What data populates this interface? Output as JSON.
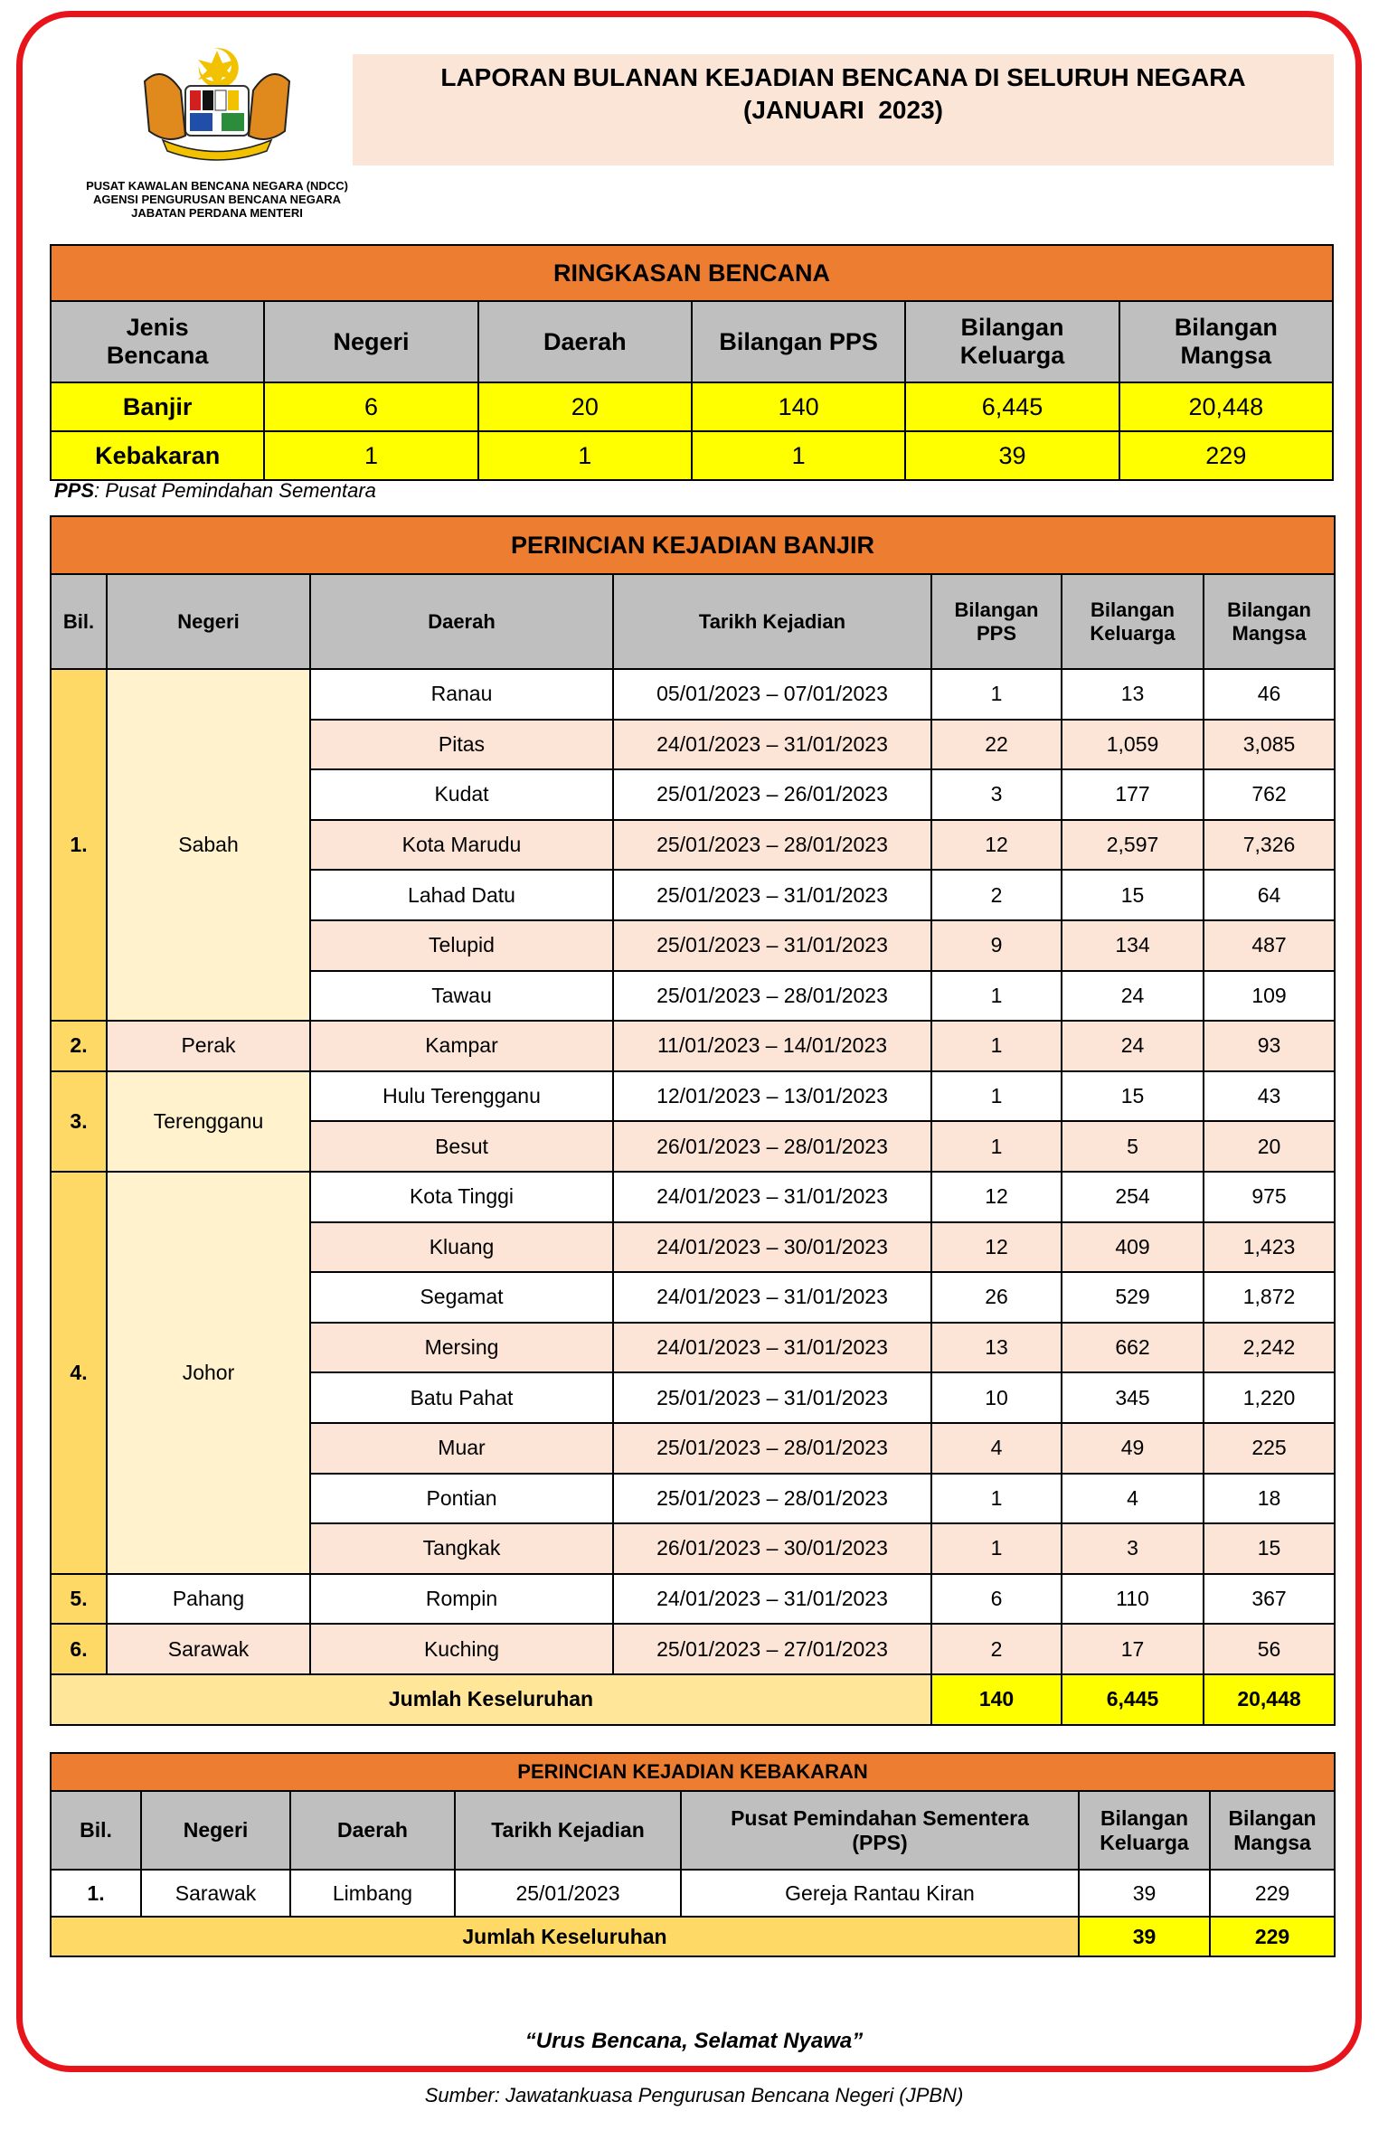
{
  "header": {
    "title": "LAPORAN BULANAN KEJADIAN BENCANA DI SELURUH NEGARA",
    "subtitle": "(JANUARI  2023)",
    "org": [
      "PUSAT KAWALAN BENCANA NEGARA (NDCC)",
      "AGENSI PENGURUSAN BENCANA NEGARA",
      "JABATAN PERDANA MENTERI"
    ]
  },
  "summary": {
    "title": "RINGKASAN BENCANA",
    "headers": [
      "Jenis\nBencana",
      "Negeri",
      "Daerah",
      "Bilangan PPS",
      "Bilangan\nKeluarga",
      "Bilangan\nMangsa"
    ],
    "rows": [
      [
        "Banjir",
        "6",
        "20",
        "140",
        "6,445",
        "20,448"
      ],
      [
        "Kebakaran",
        "1",
        "1",
        "1",
        "39",
        "229"
      ]
    ],
    "note_abbr": "PPS",
    "note_text": ": Pusat Pemindahan Sementara"
  },
  "floods": {
    "title": "PERINCIAN KEJADIAN BANJIR",
    "headers": [
      "Bil.",
      "Negeri",
      "Daerah",
      "Tarikh Kejadian",
      "Bilangan\nPPS",
      "Bilangan\nKeluarga",
      "Bilangan\nMangsa"
    ],
    "groups": [
      {
        "bil": "1.",
        "state": "Sabah",
        "rows": [
          {
            "district": "Ranau",
            "date": "05/01/2023 – 07/01/2023",
            "pps": "1",
            "families": "13",
            "victims": "46"
          },
          {
            "district": "Pitas",
            "date": "24/01/2023 – 31/01/2023",
            "pps": "22",
            "families": "1,059",
            "victims": "3,085"
          },
          {
            "district": "Kudat",
            "date": "25/01/2023 – 26/01/2023",
            "pps": "3",
            "families": "177",
            "victims": "762"
          },
          {
            "district": "Kota Marudu",
            "date": "25/01/2023 – 28/01/2023",
            "pps": "12",
            "families": "2,597",
            "victims": "7,326"
          },
          {
            "district": "Lahad Datu",
            "date": "25/01/2023 – 31/01/2023",
            "pps": "2",
            "families": "15",
            "victims": "64"
          },
          {
            "district": "Telupid",
            "date": "25/01/2023 – 31/01/2023",
            "pps": "9",
            "families": "134",
            "victims": "487"
          },
          {
            "district": "Tawau",
            "date": "25/01/2023 – 28/01/2023",
            "pps": "1",
            "families": "24",
            "victims": "109"
          }
        ]
      },
      {
        "bil": "2.",
        "state": "Perak",
        "rows": [
          {
            "district": "Kampar",
            "date": "11/01/2023 – 14/01/2023",
            "pps": "1",
            "families": "24",
            "victims": "93"
          }
        ]
      },
      {
        "bil": "3.",
        "state": "Terengganu",
        "rows": [
          {
            "district": "Hulu Terengganu",
            "date": "12/01/2023 – 13/01/2023",
            "pps": "1",
            "families": "15",
            "victims": "43"
          },
          {
            "district": "Besut",
            "date": "26/01/2023 – 28/01/2023",
            "pps": "1",
            "families": "5",
            "victims": "20"
          }
        ]
      },
      {
        "bil": "4.",
        "state": "Johor",
        "rows": [
          {
            "district": "Kota Tinggi",
            "date": "24/01/2023 – 31/01/2023",
            "pps": "12",
            "families": "254",
            "victims": "975"
          },
          {
            "district": "Kluang",
            "date": "24/01/2023 – 30/01/2023",
            "pps": "12",
            "families": "409",
            "victims": "1,423"
          },
          {
            "district": "Segamat",
            "date": "24/01/2023 – 31/01/2023",
            "pps": "26",
            "families": "529",
            "victims": "1,872"
          },
          {
            "district": "Mersing",
            "date": "24/01/2023 – 31/01/2023",
            "pps": "13",
            "families": "662",
            "victims": "2,242"
          },
          {
            "district": "Batu Pahat",
            "date": "25/01/2023 – 31/01/2023",
            "pps": "10",
            "families": "345",
            "victims": "1,220"
          },
          {
            "district": "Muar",
            "date": "25/01/2023 – 28/01/2023",
            "pps": "4",
            "families": "49",
            "victims": "225"
          },
          {
            "district": "Pontian",
            "date": "25/01/2023 – 28/01/2023",
            "pps": "1",
            "families": "4",
            "victims": "18"
          },
          {
            "district": "Tangkak",
            "date": "26/01/2023 – 30/01/2023",
            "pps": "1",
            "families": "3",
            "victims": "15"
          }
        ]
      },
      {
        "bil": "5.",
        "state": "Pahang",
        "rows": [
          {
            "district": "Rompin",
            "date": "24/01/2023 – 31/01/2023",
            "pps": "6",
            "families": "110",
            "victims": "367"
          }
        ]
      },
      {
        "bil": "6.",
        "state": "Sarawak",
        "rows": [
          {
            "district": "Kuching",
            "date": "25/01/2023 – 27/01/2023",
            "pps": "2",
            "families": "17",
            "victims": "56"
          }
        ]
      }
    ],
    "total": {
      "label": "Jumlah Keseluruhan",
      "pps": "140",
      "families": "6,445",
      "victims": "20,448"
    }
  },
  "fire": {
    "title": "PERINCIAN KEJADIAN KEBAKARAN",
    "headers": [
      "Bil.",
      "Negeri",
      "Daerah",
      "Tarikh Kejadian",
      "Pusat Pemindahan Sementera\n(PPS)",
      "Bilangan\nKeluarga",
      "Bilangan\nMangsa"
    ],
    "rows": [
      [
        "1.",
        "Sarawak",
        "Limbang",
        "25/01/2023",
        "Gereja Rantau Kiran",
        "39",
        "229"
      ]
    ],
    "total": {
      "label": "Jumlah Keseluruhan",
      "values": [
        "39",
        "229"
      ]
    }
  },
  "motto": "“Urus Bencana, Selamat Nyawa”",
  "source": "Sumber: Jawatankuasa Pengurusan Bencana Negeri (JPBN)"
}
